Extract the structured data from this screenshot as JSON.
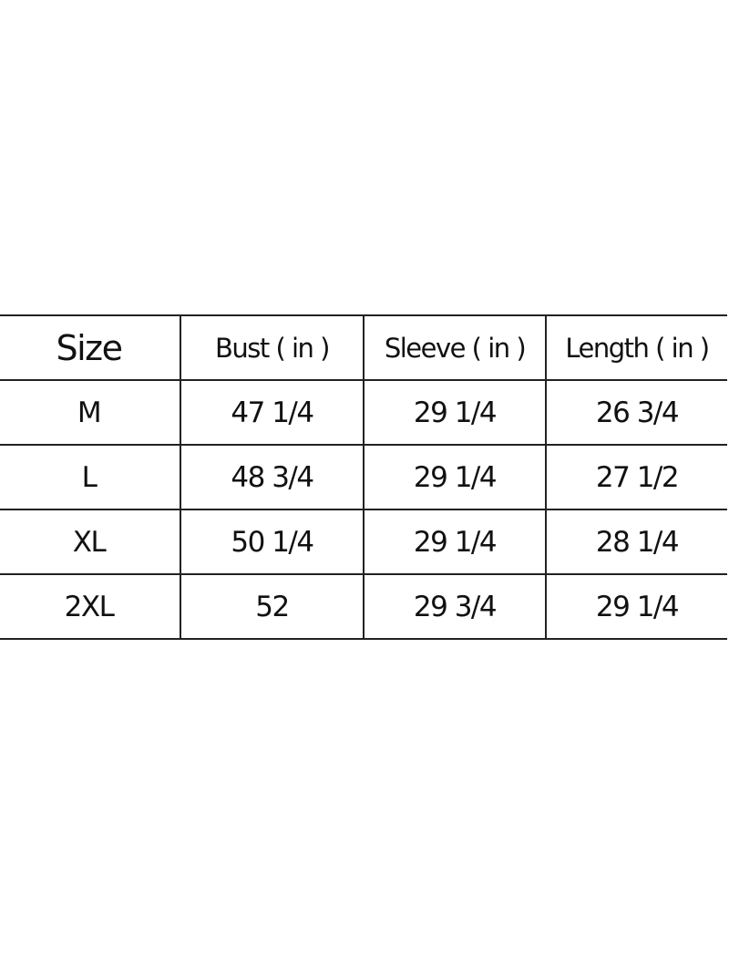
{
  "table": {
    "headers": [
      "Size",
      "Bust ( in )",
      "Sleeve ( in )",
      "Length ( in )"
    ],
    "rows": [
      [
        "M",
        "47 1/4",
        "29 1/4",
        "26 3/4"
      ],
      [
        "L",
        "48 3/4",
        "29 1/4",
        "27 1/2"
      ],
      [
        "XL",
        "50 1/4",
        "29 1/4",
        "28 1/4"
      ],
      [
        "2XL",
        "52",
        "29 3/4",
        "29 1/4"
      ]
    ]
  }
}
